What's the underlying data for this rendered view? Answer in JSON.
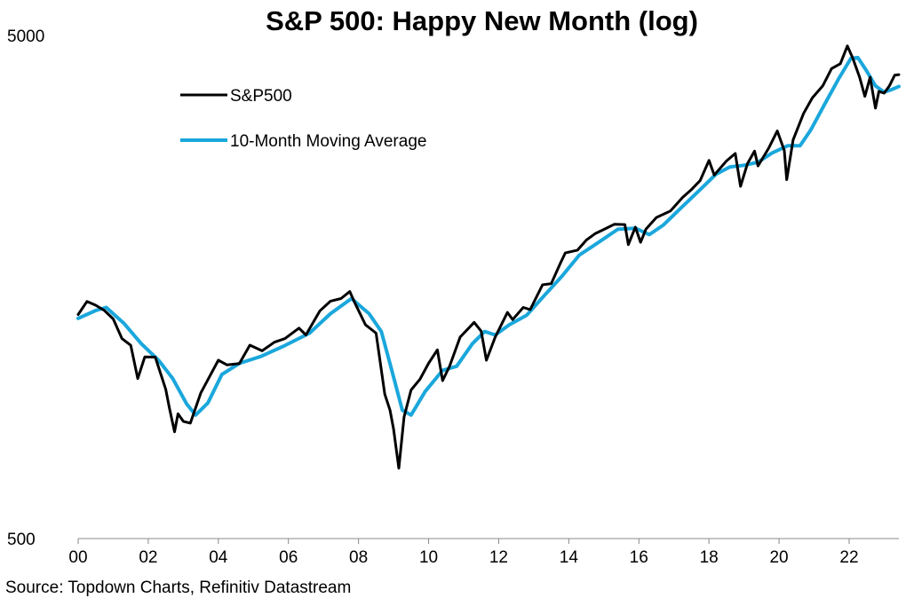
{
  "chart_data": {
    "type": "line",
    "title": "S&P 500: Happy New Month (log)",
    "source": "Source: Topdown Charts, Refinitiv Datastream",
    "y_scale": "log",
    "ylim": [
      500,
      5000
    ],
    "y_ticks": [
      500,
      5000
    ],
    "y_tick_labels": [
      "500",
      "5000"
    ],
    "xlim": [
      2000.0,
      2023.42
    ],
    "x_ticks": [
      2000,
      2002,
      2004,
      2006,
      2008,
      2010,
      2012,
      2014,
      2016,
      2018,
      2020,
      2022
    ],
    "x_tick_labels": [
      "00",
      "02",
      "04",
      "06",
      "08",
      "10",
      "12",
      "14",
      "16",
      "18",
      "20",
      "22"
    ],
    "legend_position": "top-left",
    "grid": false,
    "series": [
      {
        "name": "S&P500",
        "color": "#000000",
        "points": [
          [
            2000.0,
            1394
          ],
          [
            2000.25,
            1480
          ],
          [
            2000.5,
            1455
          ],
          [
            2000.75,
            1420
          ],
          [
            2001.0,
            1366
          ],
          [
            2001.25,
            1249
          ],
          [
            2001.5,
            1211
          ],
          [
            2001.7,
            1040
          ],
          [
            2001.9,
            1148
          ],
          [
            2002.2,
            1147
          ],
          [
            2002.5,
            990
          ],
          [
            2002.6,
            911
          ],
          [
            2002.75,
            815
          ],
          [
            2002.85,
            885
          ],
          [
            2003.0,
            855
          ],
          [
            2003.2,
            848
          ],
          [
            2003.5,
            974
          ],
          [
            2003.75,
            1050
          ],
          [
            2004.0,
            1131
          ],
          [
            2004.25,
            1107
          ],
          [
            2004.6,
            1114
          ],
          [
            2004.9,
            1212
          ],
          [
            2005.25,
            1181
          ],
          [
            2005.6,
            1228
          ],
          [
            2005.9,
            1249
          ],
          [
            2006.3,
            1310
          ],
          [
            2006.5,
            1270
          ],
          [
            2006.9,
            1418
          ],
          [
            2007.2,
            1482
          ],
          [
            2007.5,
            1500
          ],
          [
            2007.75,
            1549
          ],
          [
            2007.9,
            1468
          ],
          [
            2008.2,
            1330
          ],
          [
            2008.5,
            1280
          ],
          [
            2008.75,
            968
          ],
          [
            2008.9,
            900
          ],
          [
            2009.0,
            825
          ],
          [
            2009.15,
            690
          ],
          [
            2009.3,
            872
          ],
          [
            2009.5,
            987
          ],
          [
            2009.75,
            1036
          ],
          [
            2010.0,
            1115
          ],
          [
            2010.25,
            1186
          ],
          [
            2010.4,
            1030
          ],
          [
            2010.6,
            1101
          ],
          [
            2010.9,
            1257
          ],
          [
            2011.3,
            1345
          ],
          [
            2011.5,
            1292
          ],
          [
            2011.65,
            1131
          ],
          [
            2011.9,
            1257
          ],
          [
            2012.25,
            1408
          ],
          [
            2012.4,
            1362
          ],
          [
            2012.7,
            1440
          ],
          [
            2012.9,
            1426
          ],
          [
            2013.25,
            1597
          ],
          [
            2013.5,
            1606
          ],
          [
            2013.75,
            1757
          ],
          [
            2013.9,
            1848
          ],
          [
            2014.25,
            1872
          ],
          [
            2014.5,
            1960
          ],
          [
            2014.75,
            2018
          ],
          [
            2015.0,
            2058
          ],
          [
            2015.3,
            2107
          ],
          [
            2015.6,
            2104
          ],
          [
            2015.7,
            1920
          ],
          [
            2015.9,
            2080
          ],
          [
            2016.05,
            1940
          ],
          [
            2016.2,
            2060
          ],
          [
            2016.5,
            2174
          ],
          [
            2016.9,
            2239
          ],
          [
            2017.25,
            2384
          ],
          [
            2017.5,
            2470
          ],
          [
            2017.75,
            2575
          ],
          [
            2018.0,
            2823
          ],
          [
            2018.15,
            2640
          ],
          [
            2018.5,
            2816
          ],
          [
            2018.75,
            2914
          ],
          [
            2018.9,
            2507
          ],
          [
            2019.1,
            2784
          ],
          [
            2019.3,
            2945
          ],
          [
            2019.4,
            2752
          ],
          [
            2019.7,
            2980
          ],
          [
            2019.95,
            3230
          ],
          [
            2020.15,
            2954
          ],
          [
            2020.22,
            2585
          ],
          [
            2020.4,
            3100
          ],
          [
            2020.7,
            3500
          ],
          [
            2020.95,
            3756
          ],
          [
            2021.25,
            3973
          ],
          [
            2021.5,
            4297
          ],
          [
            2021.75,
            4395
          ],
          [
            2021.95,
            4766
          ],
          [
            2022.1,
            4516
          ],
          [
            2022.3,
            4130
          ],
          [
            2022.45,
            3785
          ],
          [
            2022.6,
            4130
          ],
          [
            2022.75,
            3585
          ],
          [
            2022.85,
            3872
          ],
          [
            2023.0,
            3840
          ],
          [
            2023.15,
            3970
          ],
          [
            2023.3,
            4170
          ],
          [
            2023.42,
            4180
          ]
        ]
      },
      {
        "name": "10-Month Moving Average",
        "color": "#1aa7dc",
        "points": [
          [
            2000.0,
            1370
          ],
          [
            2000.5,
            1420
          ],
          [
            2000.8,
            1440
          ],
          [
            2001.3,
            1340
          ],
          [
            2001.8,
            1220
          ],
          [
            2002.3,
            1130
          ],
          [
            2002.7,
            1040
          ],
          [
            2003.1,
            925
          ],
          [
            2003.35,
            880
          ],
          [
            2003.7,
            930
          ],
          [
            2004.1,
            1060
          ],
          [
            2004.6,
            1115
          ],
          [
            2005.2,
            1150
          ],
          [
            2005.9,
            1210
          ],
          [
            2006.6,
            1280
          ],
          [
            2007.2,
            1400
          ],
          [
            2007.8,
            1500
          ],
          [
            2008.3,
            1400
          ],
          [
            2008.65,
            1290
          ],
          [
            2008.95,
            1080
          ],
          [
            2009.25,
            900
          ],
          [
            2009.5,
            880
          ],
          [
            2009.9,
            980
          ],
          [
            2010.4,
            1080
          ],
          [
            2010.8,
            1100
          ],
          [
            2011.25,
            1220
          ],
          [
            2011.6,
            1290
          ],
          [
            2011.9,
            1270
          ],
          [
            2012.3,
            1330
          ],
          [
            2012.8,
            1390
          ],
          [
            2013.3,
            1520
          ],
          [
            2013.8,
            1660
          ],
          [
            2014.3,
            1830
          ],
          [
            2014.8,
            1930
          ],
          [
            2015.4,
            2060
          ],
          [
            2015.9,
            2070
          ],
          [
            2016.3,
            2010
          ],
          [
            2016.7,
            2100
          ],
          [
            2017.2,
            2270
          ],
          [
            2017.75,
            2470
          ],
          [
            2018.2,
            2650
          ],
          [
            2018.6,
            2740
          ],
          [
            2019.0,
            2760
          ],
          [
            2019.4,
            2800
          ],
          [
            2019.8,
            2920
          ],
          [
            2020.25,
            3020
          ],
          [
            2020.6,
            3020
          ],
          [
            2020.9,
            3240
          ],
          [
            2021.3,
            3650
          ],
          [
            2021.7,
            4100
          ],
          [
            2022.05,
            4500
          ],
          [
            2022.25,
            4520
          ],
          [
            2022.5,
            4250
          ],
          [
            2022.75,
            3970
          ],
          [
            2023.0,
            3860
          ],
          [
            2023.2,
            3900
          ],
          [
            2023.42,
            3960
          ]
        ]
      }
    ]
  }
}
